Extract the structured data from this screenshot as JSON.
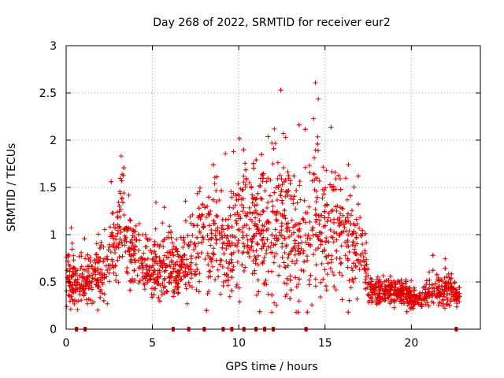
{
  "chart_data": {
    "type": "scatter",
    "title": "Day 268 of 2022, SRMTID for receiver eur2",
    "xlabel": "GPS time / hours",
    "ylabel": "SRMTID / TECUs",
    "xlim": [
      0,
      24
    ],
    "ylim": [
      0,
      3
    ],
    "xticks": [
      0,
      5,
      10,
      15,
      20
    ],
    "yticks": [
      0,
      0.5,
      1,
      1.5,
      2,
      2.5,
      3
    ],
    "xtick_labels": [
      "0",
      "5",
      "10",
      "15",
      "20"
    ],
    "ytick_labels": [
      "0",
      "0.5",
      "1",
      "1.5",
      "2",
      "2.5",
      "3"
    ],
    "grid": true,
    "marker": "+",
    "color": "#e00000",
    "envelope": {
      "hours": [
        0,
        0.5,
        1,
        1.5,
        2,
        2.5,
        3,
        3.2,
        3.5,
        4,
        4.5,
        5,
        5.5,
        6,
        6.5,
        7,
        7.5,
        8,
        8.5,
        9,
        9.5,
        10,
        10.5,
        11,
        11.5,
        12,
        12.5,
        13,
        13.5,
        14,
        14.5,
        15,
        15.5,
        16,
        16.5,
        17,
        17.3,
        17.6,
        18,
        18.5,
        19,
        19.5,
        20,
        20.5,
        21,
        21.5,
        22,
        22.5,
        22.8
      ],
      "center": [
        0.6,
        0.5,
        0.5,
        0.55,
        0.6,
        0.75,
        0.95,
        1.3,
        0.95,
        0.8,
        0.75,
        0.6,
        0.65,
        0.7,
        0.6,
        0.7,
        0.85,
        1.0,
        1.0,
        0.85,
        0.9,
        1.1,
        1.15,
        1.1,
        1.0,
        1.05,
        1.2,
        1.1,
        1.0,
        1.05,
        1.3,
        1.1,
        1.0,
        1.0,
        0.9,
        0.85,
        0.7,
        0.45,
        0.4,
        0.4,
        0.38,
        0.38,
        0.32,
        0.35,
        0.38,
        0.4,
        0.42,
        0.38,
        0.35
      ],
      "spread": [
        0.25,
        0.2,
        0.2,
        0.2,
        0.25,
        0.25,
        0.35,
        0.55,
        0.3,
        0.3,
        0.25,
        0.2,
        0.25,
        0.25,
        0.2,
        0.25,
        0.35,
        0.4,
        0.4,
        0.3,
        0.45,
        0.55,
        0.55,
        0.55,
        0.5,
        0.55,
        0.6,
        0.55,
        0.5,
        0.55,
        0.65,
        0.5,
        0.45,
        0.45,
        0.4,
        0.35,
        0.3,
        0.12,
        0.1,
        0.1,
        0.1,
        0.1,
        0.08,
        0.1,
        0.12,
        0.12,
        0.15,
        0.1,
        0.08
      ]
    },
    "n_points": 2600,
    "gap_markers_hours": [
      0.6,
      1.1,
      6.2,
      7.1,
      8.0,
      9.1,
      9.6,
      10.3,
      11.0,
      11.5,
      12.0,
      13.9,
      22.6
    ]
  }
}
